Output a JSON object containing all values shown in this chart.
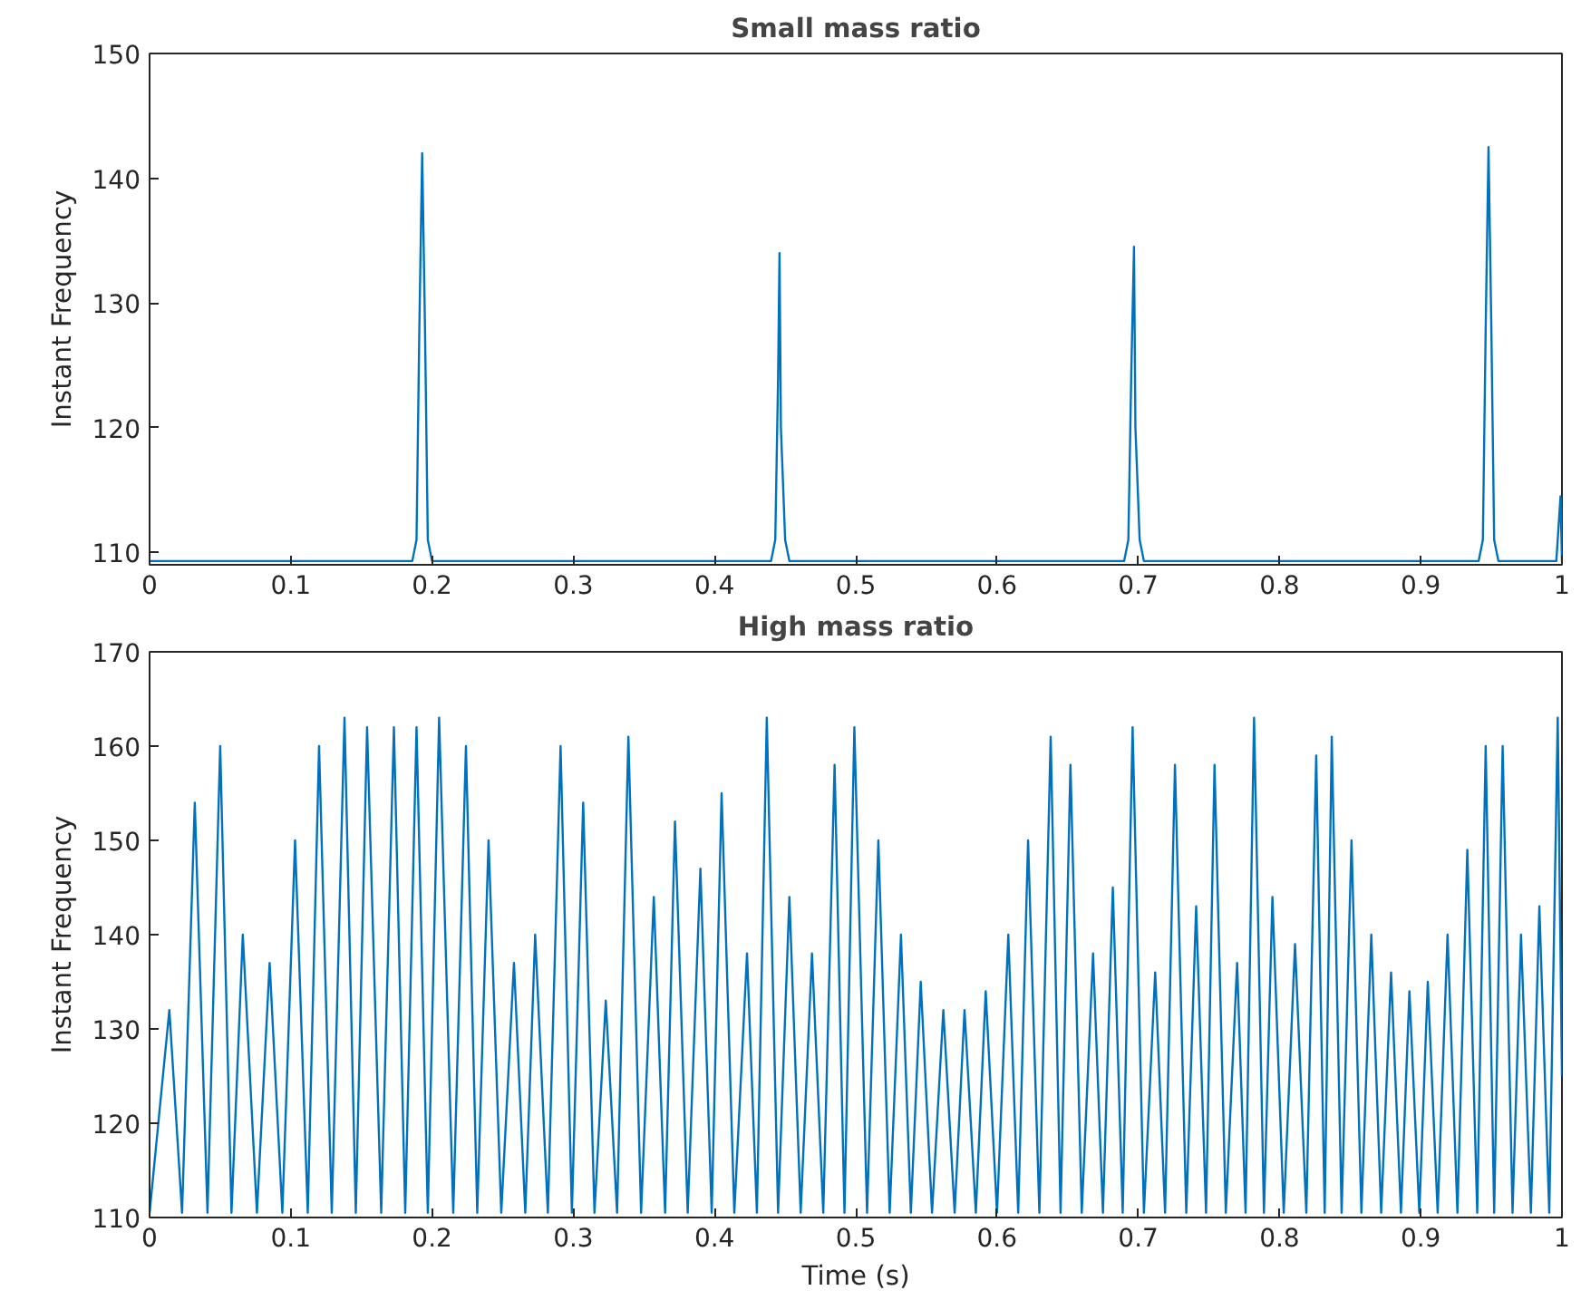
{
  "chart_data": [
    {
      "type": "line",
      "title": "Small mass ratio",
      "ylabel": "Instant Frequency",
      "xlim": [
        0,
        1
      ],
      "ylim": [
        109,
        150
      ],
      "xticks": [
        0,
        0.1,
        0.2,
        0.3,
        0.4,
        0.5,
        0.6,
        0.7,
        0.8,
        0.9,
        1
      ],
      "yticks": [
        110,
        120,
        130,
        140,
        150
      ],
      "grid": false,
      "series": [
        {
          "color": "#0072bd",
          "x": [
            0,
            0.186,
            0.189,
            0.191,
            0.193,
            0.195,
            0.197,
            0.2,
            0.44,
            0.443,
            0.445,
            0.446,
            0.447,
            0.45,
            0.453,
            0.69,
            0.693,
            0.695,
            0.697,
            0.698,
            0.701,
            0.704,
            0.941,
            0.944,
            0.946,
            0.948,
            0.95,
            0.952,
            0.955,
            0.996,
            0.999,
            1.0
          ],
          "values": [
            109.3,
            109.3,
            111,
            128,
            142,
            128,
            111,
            109.3,
            109.3,
            111,
            124,
            134,
            120,
            111,
            109.3,
            109.3,
            111,
            124,
            134.5,
            120,
            111,
            109.3,
            109.3,
            111,
            128,
            142.5,
            128,
            111,
            109.3,
            109.3,
            114.5,
            109.3
          ]
        }
      ]
    },
    {
      "type": "line",
      "title": "High mass ratio",
      "xlabel": "Time (s)",
      "ylabel": "Instant Frequency",
      "xlim": [
        0,
        1
      ],
      "ylim": [
        110,
        170
      ],
      "xticks": [
        0,
        0.1,
        0.2,
        0.3,
        0.4,
        0.5,
        0.6,
        0.7,
        0.8,
        0.9,
        1
      ],
      "yticks": [
        110,
        120,
        130,
        140,
        150,
        160,
        170
      ],
      "grid": false,
      "series": [
        {
          "color": "#0072bd",
          "x": [
            0,
            0.014,
            0.023,
            0.032,
            0.041,
            0.05,
            0.058,
            0.066,
            0.076,
            0.085,
            0.094,
            0.103,
            0.112,
            0.12,
            0.129,
            0.138,
            0.146,
            0.154,
            0.164,
            0.173,
            0.181,
            0.189,
            0.197,
            0.205,
            0.215,
            0.224,
            0.232,
            0.24,
            0.249,
            0.258,
            0.266,
            0.273,
            0.282,
            0.291,
            0.299,
            0.307,
            0.315,
            0.323,
            0.331,
            0.339,
            0.348,
            0.357,
            0.365,
            0.372,
            0.381,
            0.39,
            0.398,
            0.405,
            0.414,
            0.423,
            0.43,
            0.437,
            0.445,
            0.453,
            0.461,
            0.469,
            0.477,
            0.485,
            0.492,
            0.499,
            0.508,
            0.516,
            0.524,
            0.532,
            0.539,
            0.546,
            0.554,
            0.562,
            0.57,
            0.577,
            0.585,
            0.592,
            0.6,
            0.608,
            0.615,
            0.622,
            0.63,
            0.638,
            0.645,
            0.652,
            0.66,
            0.668,
            0.675,
            0.682,
            0.689,
            0.696,
            0.704,
            0.712,
            0.719,
            0.726,
            0.734,
            0.741,
            0.748,
            0.754,
            0.762,
            0.77,
            0.776,
            0.782,
            0.789,
            0.795,
            0.803,
            0.811,
            0.819,
            0.826,
            0.832,
            0.837,
            0.844,
            0.851,
            0.858,
            0.865,
            0.872,
            0.879,
            0.886,
            0.892,
            0.899,
            0.905,
            0.912,
            0.919,
            0.926,
            0.933,
            0.94,
            0.946,
            0.952,
            0.958,
            0.965,
            0.971,
            0.978,
            0.984,
            0.991,
            0.997,
            1.0
          ],
          "values": [
            110.5,
            132,
            110.5,
            154,
            110.5,
            160,
            110.5,
            140,
            110.5,
            137,
            110.5,
            150,
            110.5,
            160,
            110.5,
            163,
            110.5,
            162,
            110.5,
            162,
            110.5,
            162,
            110.5,
            163,
            110.5,
            160,
            110.5,
            150,
            110.5,
            137,
            110.5,
            140,
            110.5,
            160,
            110.5,
            154,
            110.5,
            133,
            110.5,
            161,
            110.5,
            144,
            110.5,
            152,
            110.5,
            147,
            110.5,
            155,
            110.5,
            138,
            110.5,
            163,
            110.5,
            144,
            110.5,
            138,
            110.5,
            158,
            110.5,
            162,
            110.5,
            150,
            110.5,
            140,
            110.5,
            135,
            110.5,
            132,
            110.5,
            132,
            110.5,
            134,
            110.5,
            140,
            110.5,
            150,
            110.5,
            161,
            110.5,
            158,
            110.5,
            138,
            110.5,
            145,
            110.5,
            162,
            110.5,
            136,
            110.5,
            158,
            110.5,
            143,
            110.5,
            158,
            110.5,
            137,
            110.5,
            163,
            110.5,
            144,
            110.5,
            139,
            110.5,
            159,
            110.5,
            161,
            110.5,
            150,
            110.5,
            140,
            110.5,
            136,
            110.5,
            134,
            110.5,
            135,
            110.5,
            140,
            110.5,
            149,
            110.5,
            160,
            110.5,
            160,
            110.5,
            140,
            110.5,
            143,
            110.5,
            163,
            125
          ]
        }
      ]
    }
  ]
}
